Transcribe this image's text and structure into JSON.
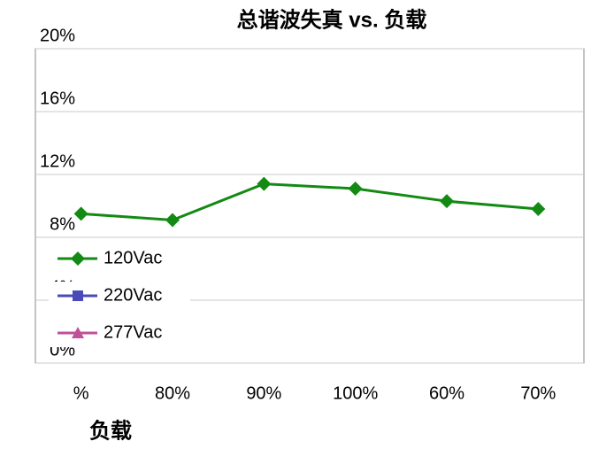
{
  "chart_data": {
    "type": "line",
    "title": "总谐波失真 vs. 负载",
    "x_label": "负载",
    "categories": [
      "%",
      "80%",
      "90%",
      "100%",
      "60%",
      "70%"
    ],
    "series": [
      {
        "name": "120Vac",
        "color": "#138a13",
        "marker": "diamond",
        "values": [
          9.5,
          9.1,
          11.4,
          11.1,
          10.3,
          9.8
        ]
      }
    ],
    "legend": [
      {
        "name": "120Vac",
        "color": "#138a13",
        "marker": "diamond"
      },
      {
        "name": "220Vac",
        "color": "#4a4ab8",
        "marker": "square"
      },
      {
        "name": "277Vac",
        "color": "#c0509a",
        "marker": "triangle"
      }
    ],
    "ylim": [
      0,
      20
    ],
    "yticks": [
      {
        "value": 0,
        "label": "0%"
      },
      {
        "value": 4,
        "label": "4%"
      },
      {
        "value": 8,
        "label": "8%"
      },
      {
        "value": 12,
        "label": "12%"
      },
      {
        "value": 16,
        "label": "16%"
      },
      {
        "value": 20,
        "label": "20%"
      }
    ],
    "grid": true
  }
}
